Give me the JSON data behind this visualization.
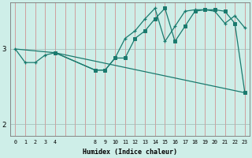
{
  "xlabel": "Humidex (Indice chaleur)",
  "bg_color": "#ceeee8",
  "line_color": "#1a7a6e",
  "xtick_labels": [
    "0",
    "1",
    "2",
    "3",
    "4",
    "",
    "",
    "",
    "8",
    "9",
    "10",
    "11",
    "12",
    "13",
    "14",
    "15",
    "16",
    "17",
    "18",
    "19",
    "20",
    "21",
    "22",
    "23"
  ],
  "yticks": [
    2,
    3
  ],
  "ylim": [
    1.85,
    3.62
  ],
  "xlim": [
    -0.5,
    23.5
  ],
  "line1_x": [
    0,
    1,
    2,
    3,
    4,
    8,
    9,
    10,
    11,
    12,
    13,
    14,
    15,
    16,
    17,
    18,
    19,
    20,
    21,
    22,
    23
  ],
  "line1_y": [
    3.0,
    2.82,
    2.82,
    2.92,
    2.95,
    2.72,
    2.72,
    2.88,
    3.14,
    3.24,
    3.4,
    3.54,
    3.1,
    3.3,
    3.5,
    3.52,
    3.52,
    3.5,
    3.34,
    3.44,
    3.28
  ],
  "line2_x": [
    0,
    4,
    23
  ],
  "line2_y": [
    3.0,
    2.95,
    2.42
  ],
  "line3_x": [
    4,
    8,
    9,
    10,
    11,
    12,
    13,
    14,
    15,
    16,
    17,
    18,
    19,
    20,
    21,
    22,
    23
  ],
  "line3_y": [
    2.95,
    2.72,
    2.72,
    2.88,
    2.88,
    3.14,
    3.24,
    3.4,
    3.54,
    3.1,
    3.3,
    3.5,
    3.52,
    3.52,
    3.5,
    3.34,
    2.42
  ]
}
